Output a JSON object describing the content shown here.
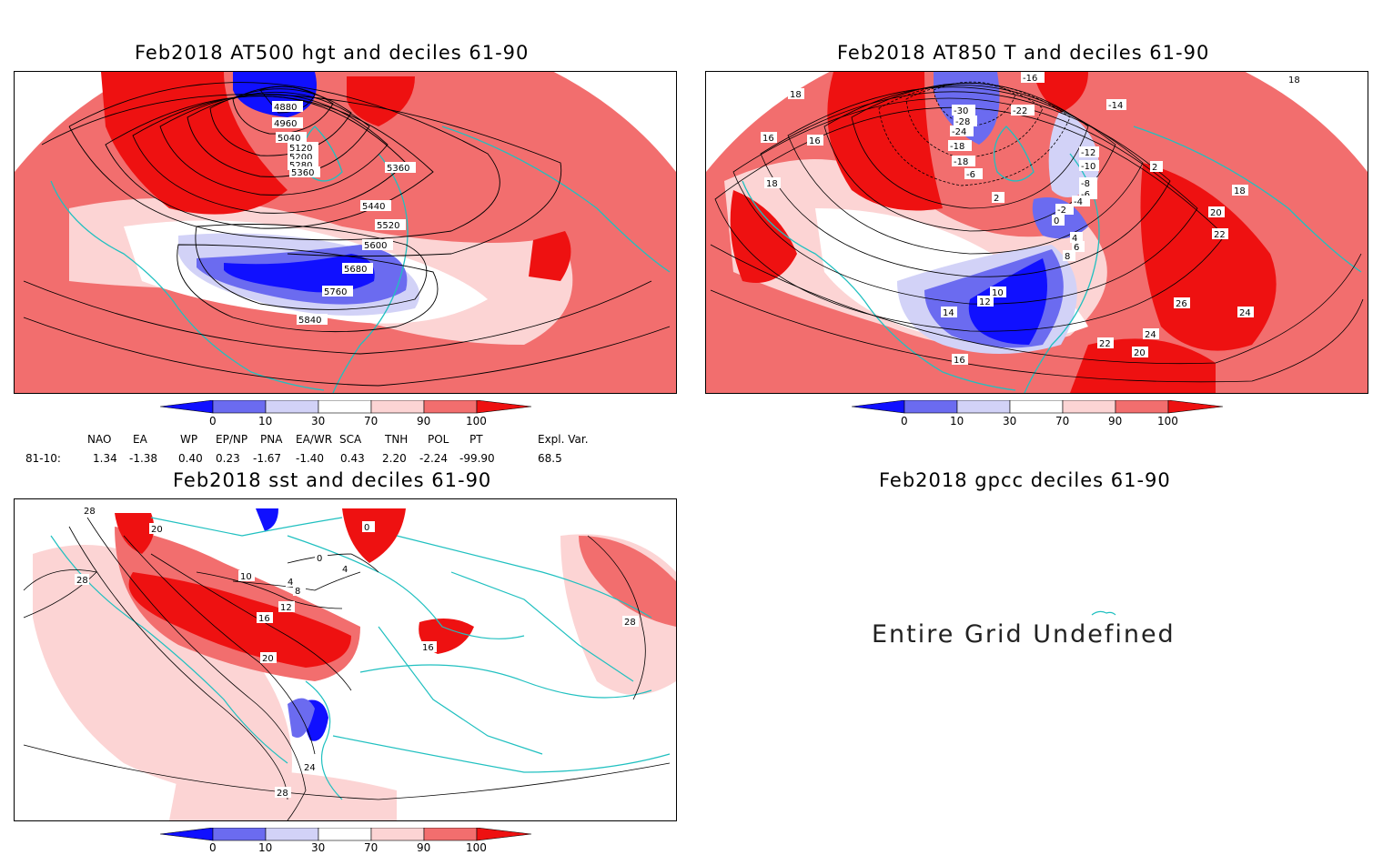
{
  "colors": {
    "dark_blue": "#1010ff",
    "mid_blue": "#6b6bf0",
    "light_blue": "#d2d2f7",
    "white": "#ffffff",
    "light_red": "#fcd4d4",
    "mid_red": "#f26e6e",
    "dark_red": "#ee1111",
    "coast": "#20c0c0",
    "contour": "#000000"
  },
  "panels": {
    "hgt500": {
      "title": "Feb2018 AT500 hgt and deciles 61-90",
      "contour_labels": [
        "4880",
        "4960",
        "5040",
        "5120",
        "5200",
        "5280",
        "5360",
        "5360",
        "5440",
        "5520",
        "5600",
        "5680",
        "5760",
        "5840"
      ]
    },
    "t850": {
      "title": "Feb2018 AT850 T and deciles 61-90",
      "contour_labels": [
        "-30",
        "-22",
        "-28",
        "-24",
        "-18",
        "-14",
        "-12",
        "-10",
        "-8",
        "-6",
        "-4",
        "-2",
        "0",
        "2",
        "2",
        "4",
        "6",
        "8",
        "10",
        "12",
        "14",
        "16",
        "16",
        "16",
        "18",
        "18",
        "18",
        "18",
        "20",
        "20",
        "22",
        "22",
        "24",
        "24",
        "26",
        "-16",
        "-6",
        "-18"
      ]
    },
    "sst": {
      "title": "Feb2018 sst and deciles 61-90",
      "contour_labels": [
        "28",
        "28",
        "20",
        "0",
        "0",
        "4",
        "4",
        "8",
        "12",
        "16",
        "20",
        "24",
        "28",
        "28",
        "10",
        "16"
      ]
    },
    "gpcc": {
      "title": "Feb2018 gpcc deciles 61-90",
      "message": "Entire Grid Undefined"
    }
  },
  "colorbar": {
    "ticks": [
      "0",
      "10",
      "30",
      "70",
      "90",
      "100"
    ]
  },
  "indices": {
    "headers": [
      "NAO",
      "EA",
      "WP",
      "EP/NP",
      "PNA",
      "EA/WR",
      "SCA",
      "TNH",
      "POL",
      "PT",
      "Expl. Var."
    ],
    "row_label": "81-10:",
    "values": [
      "1.34",
      "-1.38",
      "0.40",
      "0.23",
      "-1.67",
      "-1.40",
      "0.43",
      "2.20",
      "-2.24",
      "-99.90",
      "68.5"
    ]
  }
}
